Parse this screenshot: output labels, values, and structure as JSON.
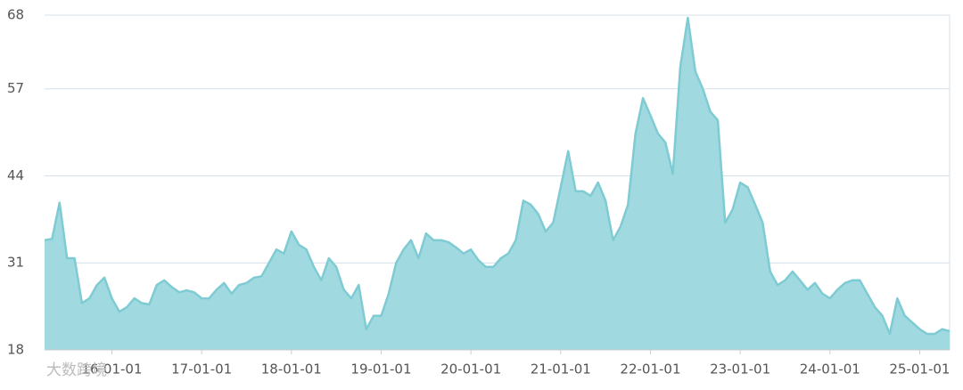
{
  "chart_data": {
    "type": "area",
    "watermark": "大数跨境",
    "x": [
      "15-04-01",
      "15-05-01",
      "15-06-01",
      "15-07-01",
      "15-08-01",
      "15-09-01",
      "15-10-01",
      "15-11-01",
      "15-12-01",
      "16-01-01",
      "16-02-01",
      "16-03-01",
      "16-04-01",
      "16-05-01",
      "16-06-01",
      "16-07-01",
      "16-08-01",
      "16-09-01",
      "16-10-01",
      "16-11-01",
      "16-12-01",
      "17-01-01",
      "17-02-01",
      "17-03-01",
      "17-04-01",
      "17-05-01",
      "17-06-01",
      "17-07-01",
      "17-08-01",
      "17-09-01",
      "17-10-01",
      "17-11-01",
      "17-12-01",
      "18-01-01",
      "18-02-01",
      "18-03-01",
      "18-04-01",
      "18-05-01",
      "18-06-01",
      "18-07-01",
      "18-08-01",
      "18-09-01",
      "18-10-01",
      "18-11-01",
      "18-12-01",
      "19-01-01",
      "19-02-01",
      "19-03-01",
      "19-04-01",
      "19-05-01",
      "19-06-01",
      "19-07-01",
      "19-08-01",
      "19-09-01",
      "19-10-01",
      "19-11-01",
      "19-12-01",
      "20-01-01",
      "20-02-01",
      "20-03-01",
      "20-04-01",
      "20-05-01",
      "20-06-01",
      "20-07-01",
      "20-08-01",
      "20-09-01",
      "20-10-01",
      "20-11-01",
      "20-12-01",
      "21-01-01",
      "21-02-01",
      "21-03-01",
      "21-04-01",
      "21-05-01",
      "21-06-01",
      "21-07-01",
      "21-08-01",
      "21-09-01",
      "21-10-01",
      "21-11-01",
      "21-12-01",
      "22-01-01",
      "22-02-01",
      "22-03-01",
      "22-04-01",
      "22-05-01",
      "22-06-01",
      "22-07-01",
      "22-08-01",
      "22-09-01",
      "22-10-01",
      "22-11-01",
      "22-12-01",
      "23-01-01",
      "23-02-01",
      "23-03-01",
      "23-04-01",
      "23-05-01",
      "23-06-01",
      "23-07-01",
      "23-08-01",
      "23-09-01",
      "23-10-01",
      "23-11-01",
      "23-12-01",
      "24-01-01",
      "24-02-01",
      "24-03-01",
      "24-04-01",
      "24-05-01",
      "24-06-01",
      "24-07-01",
      "24-08-01",
      "24-09-01",
      "24-10-01",
      "24-11-01",
      "24-12-01",
      "25-01-01",
      "25-02-01",
      "25-03-01",
      "25-04-01",
      "25-05-01"
    ],
    "series": [
      {
        "color": "#7fcbd3",
        "fill": "#a0d9df",
        "values": [
          34.4,
          34.6,
          40.0,
          31.7,
          31.7,
          25.0,
          25.7,
          27.7,
          28.8,
          25.7,
          23.7,
          24.4,
          25.7,
          25.0,
          24.8,
          27.7,
          28.4,
          27.4,
          26.6,
          26.9,
          26.6,
          25.7,
          25.7,
          27.0,
          28.0,
          26.4,
          27.7,
          28.0,
          28.8,
          29.0,
          31.0,
          33.0,
          32.4,
          35.7,
          33.7,
          33.0,
          30.4,
          28.4,
          31.7,
          30.4,
          27.0,
          25.7,
          27.7,
          21.1,
          23.1,
          23.1,
          26.4,
          31.0,
          33.0,
          34.4,
          31.7,
          35.4,
          34.4,
          34.4,
          34.1,
          33.3,
          32.4,
          33.0,
          31.4,
          30.4,
          30.4,
          31.7,
          32.4,
          34.4,
          40.3,
          39.7,
          38.3,
          35.7,
          37.0,
          42.3,
          47.7,
          41.7,
          41.7,
          41.0,
          43.0,
          40.3,
          34.4,
          36.4,
          39.7,
          50.3,
          55.6,
          53.0,
          50.3,
          49.0,
          44.3,
          60.3,
          67.6,
          59.6,
          57.0,
          53.6,
          52.3,
          37.0,
          39.0,
          43.0,
          42.3,
          39.7,
          37.0,
          29.7,
          27.7,
          28.4,
          29.7,
          28.4,
          27.0,
          28.0,
          26.4,
          25.7,
          27.0,
          28.0,
          28.4,
          28.4,
          26.4,
          24.4,
          23.1,
          20.4,
          25.7,
          23.1,
          22.1,
          21.1,
          20.4,
          20.4,
          21.1,
          20.8
        ]
      }
    ],
    "xlim": [
      "15-04-01",
      "25-05-01"
    ],
    "xticks": [
      "16-01-01",
      "17-01-01",
      "18-01-01",
      "19-01-01",
      "20-01-01",
      "21-01-01",
      "22-01-01",
      "23-01-01",
      "24-01-01",
      "25-01-01"
    ],
    "ylim": [
      18,
      68
    ],
    "yticks": [
      18,
      31,
      44,
      57,
      68
    ],
    "grid": true
  }
}
